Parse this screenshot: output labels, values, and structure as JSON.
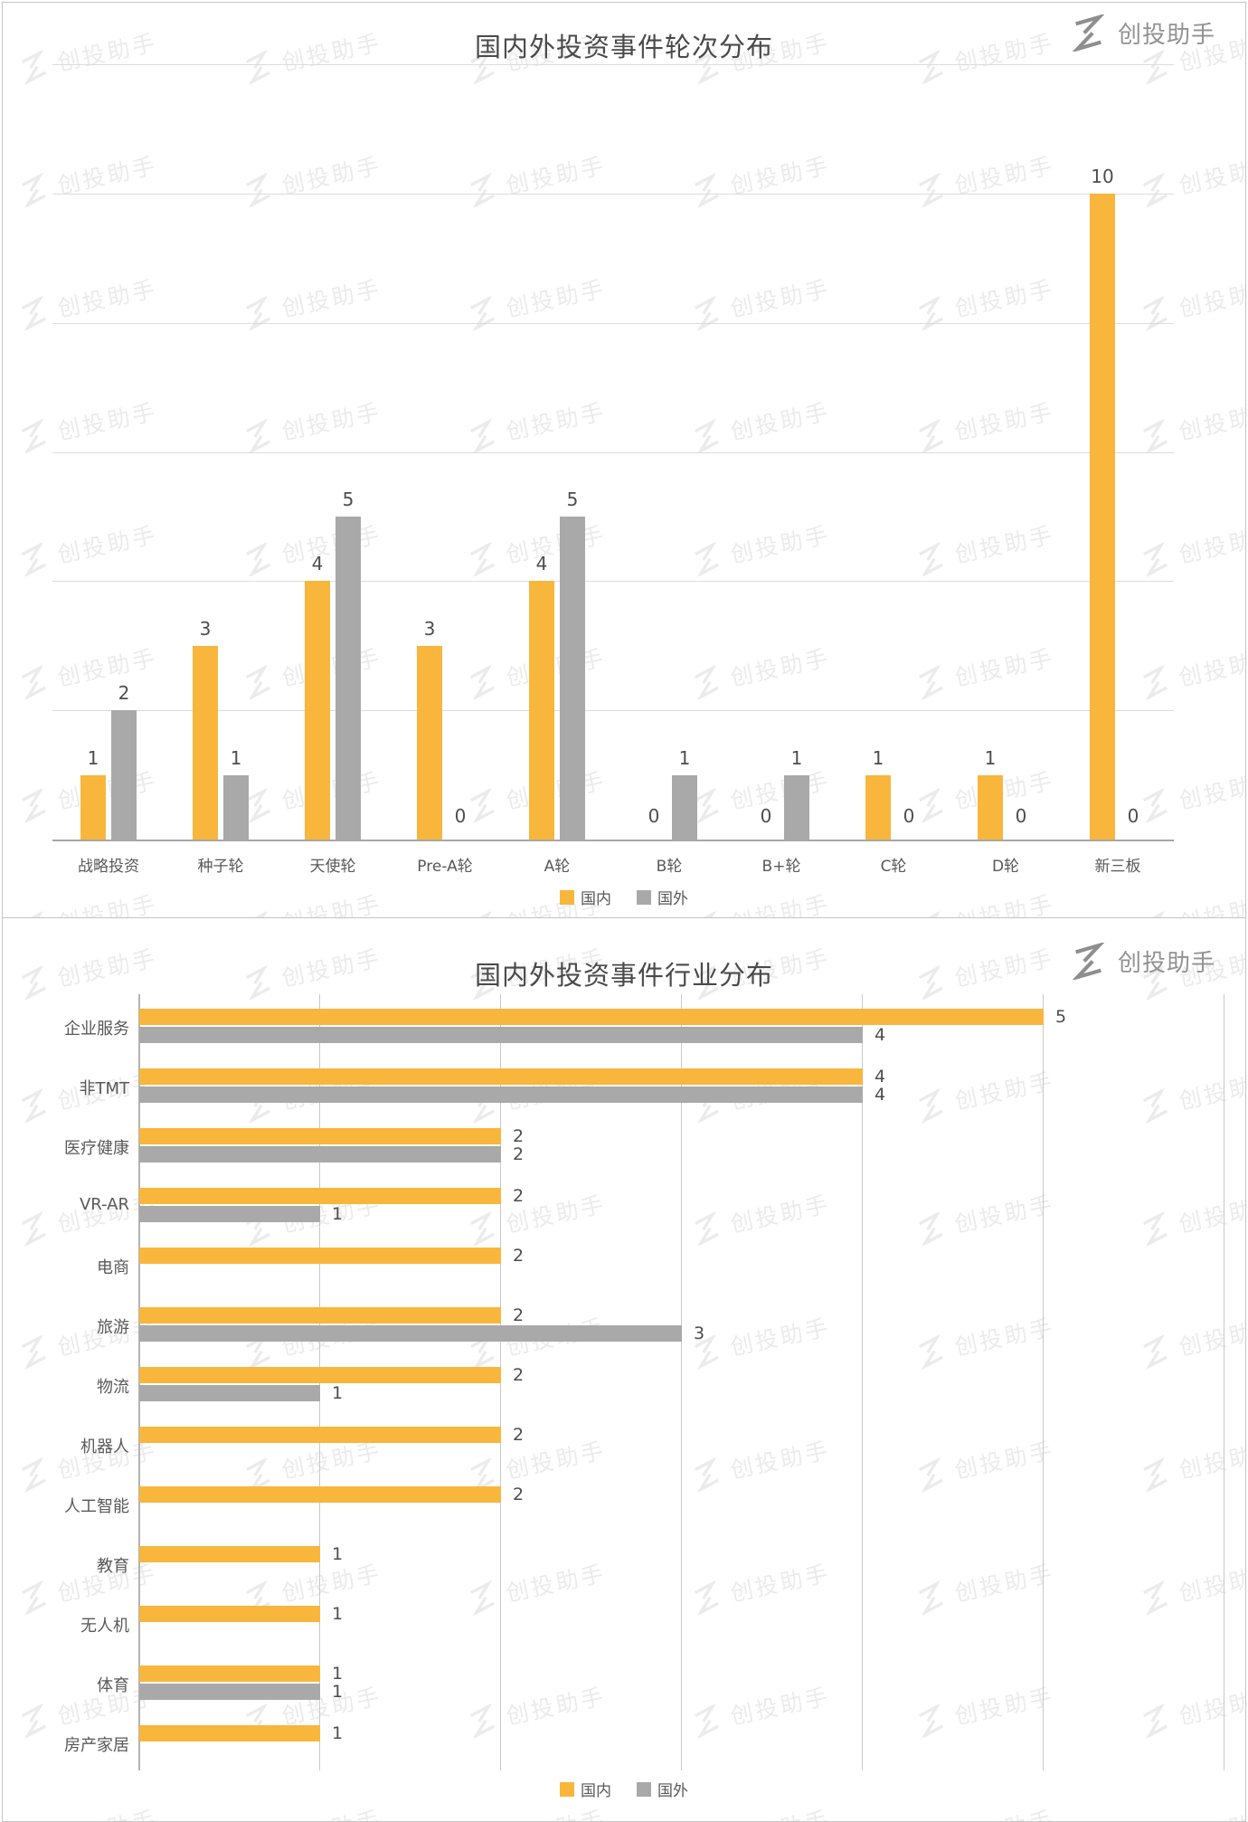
{
  "brand": {
    "name": "创投助手"
  },
  "watermark_text": "创投助手",
  "colors": {
    "domestic": "#F8B63C",
    "foreign": "#A9A9A9",
    "title_text": "#4A4A4A",
    "label_text": "#595959",
    "grid_line": "#DCDCDC",
    "axis_line": "#A6A6A6",
    "brand_text": "#929292",
    "watermark": "#EBEBEB",
    "panel_border": "#C5C5C5"
  },
  "chart_data": [
    {
      "type": "bar",
      "orientation": "vertical",
      "title": "国内外投资事件轮次分布",
      "xlabel": "",
      "ylabel": "",
      "categories": [
        "战略投资",
        "种子轮",
        "天使轮",
        "Pre-A轮",
        "A轮",
        "B轮",
        "B+轮",
        "C轮",
        "D轮",
        "新三板"
      ],
      "series": [
        {
          "name": "国内",
          "color_key": "domestic",
          "values": [
            1,
            3,
            4,
            3,
            4,
            0,
            0,
            1,
            1,
            10
          ]
        },
        {
          "name": "国外",
          "color_key": "foreign",
          "values": [
            2,
            1,
            5,
            0,
            5,
            1,
            1,
            0,
            0,
            0
          ]
        }
      ],
      "ylim": [
        0,
        12
      ],
      "grid_step": 2,
      "grid": true,
      "data_labels": true,
      "legend_position": "bottom-center"
    },
    {
      "type": "bar",
      "orientation": "horizontal",
      "title": "国内外投资事件行业分布",
      "xlabel": "",
      "ylabel": "",
      "categories": [
        "企业服务",
        "非TMT",
        "医疗健康",
        "VR-AR",
        "电商",
        "旅游",
        "物流",
        "机器人",
        "人工智能",
        "教育",
        "无人机",
        "体育",
        "房产家居"
      ],
      "series": [
        {
          "name": "国内",
          "color_key": "domestic",
          "values": [
            5,
            4,
            2,
            2,
            2,
            2,
            2,
            2,
            2,
            1,
            1,
            1,
            1
          ]
        },
        {
          "name": "国外",
          "color_key": "foreign",
          "values": [
            4,
            4,
            2,
            1,
            null,
            3,
            1,
            null,
            null,
            null,
            null,
            1,
            null
          ]
        }
      ],
      "xlim": [
        0,
        6
      ],
      "grid_step": 1,
      "grid": true,
      "data_labels": true,
      "legend_position": "bottom-center"
    }
  ]
}
